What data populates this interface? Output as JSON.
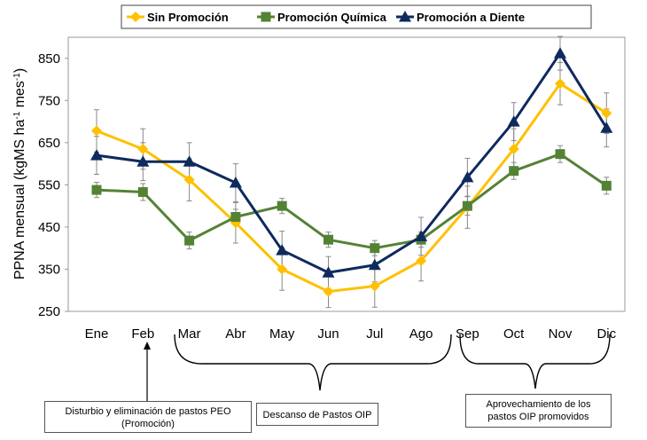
{
  "chart_data": {
    "type": "line",
    "categories": [
      "Ene",
      "Feb",
      "Mar",
      "Abr",
      "May",
      "Jun",
      "Jul",
      "Ago",
      "Sep",
      "Oct",
      "Nov",
      "Dic"
    ],
    "ylabel_parts": {
      "base": "PPNA mensual (kgMS ha",
      "sup1": "-1",
      "mid": " mes",
      "sup2": "-1",
      "end": ")"
    },
    "ylim": [
      250,
      900
    ],
    "yticks": [
      250,
      350,
      450,
      550,
      650,
      750,
      850
    ],
    "grid": false,
    "legend": "top",
    "series": [
      {
        "name": "Sin Promoción",
        "color": "#FFC000",
        "marker": "diamond",
        "values": [
          678,
          635,
          562,
          460,
          350,
          297,
          310,
          370,
          497,
          635,
          790,
          720
        ],
        "errors": [
          50,
          48,
          50,
          48,
          50,
          38,
          50,
          48,
          50,
          48,
          50,
          48
        ]
      },
      {
        "name": "Promoción Química",
        "color": "#548235",
        "marker": "square",
        "values": [
          538,
          533,
          418,
          474,
          500,
          420,
          400,
          420,
          500,
          583,
          623,
          548
        ],
        "errors": [
          18,
          20,
          20,
          18,
          18,
          18,
          18,
          18,
          22,
          20,
          20,
          20
        ]
      },
      {
        "name": "Promoción a Diente",
        "color": "#0E2A5E",
        "marker": "triangle",
        "values": [
          620,
          605,
          605,
          555,
          395,
          342,
          360,
          428,
          568,
          700,
          862,
          685
        ],
        "errors": [
          45,
          45,
          45,
          45,
          45,
          38,
          40,
          45,
          45,
          45,
          40,
          45
        ]
      }
    ]
  },
  "annotations": {
    "peo": {
      "line1": "Disturbio y eliminación de pastos PEO",
      "line2": "(Promoción)"
    },
    "oip": "Descanso de Pastos OIP",
    "aprov": {
      "line1": "Aprovechamiento de los",
      "line2": "pastos OIP promovidos"
    }
  }
}
